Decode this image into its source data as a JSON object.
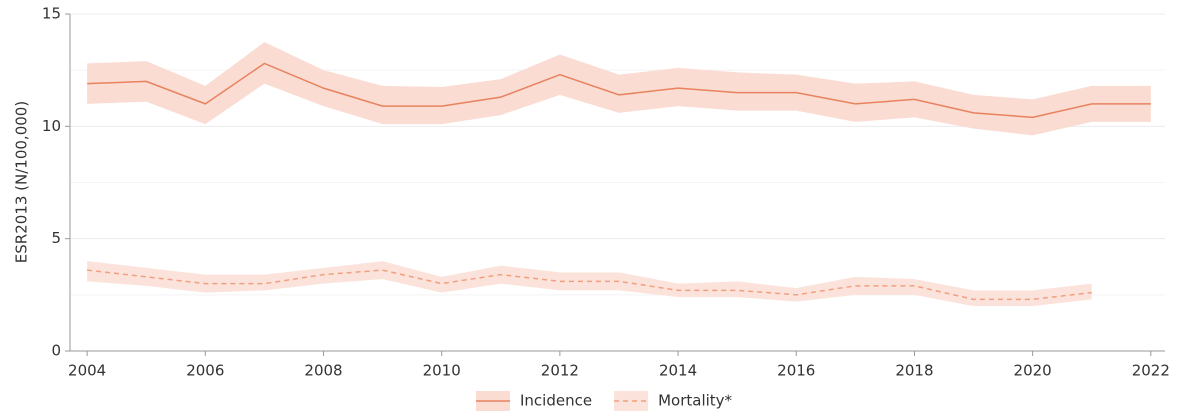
{
  "chart_data": {
    "type": "line",
    "y_label": "ESR2013 (N/100,000)",
    "x": [
      2004,
      2005,
      2006,
      2007,
      2008,
      2009,
      2010,
      2011,
      2012,
      2013,
      2014,
      2015,
      2016,
      2017,
      2018,
      2019,
      2020,
      2021,
      2022
    ],
    "series": [
      {
        "name": "Incidence",
        "color": "#e8825f",
        "band_color": "#fadcd3",
        "dash": false,
        "values": [
          11.9,
          12.0,
          11.0,
          12.8,
          11.7,
          10.9,
          10.9,
          11.3,
          12.3,
          11.4,
          11.7,
          11.5,
          11.5,
          11.0,
          11.2,
          10.6,
          10.4,
          11.0,
          11.0
        ],
        "upper": [
          12.8,
          12.9,
          11.8,
          13.75,
          12.5,
          11.8,
          11.75,
          12.1,
          13.2,
          12.3,
          12.6,
          12.4,
          12.3,
          11.9,
          12.0,
          11.4,
          11.2,
          11.8,
          11.8
        ],
        "lower": [
          11.0,
          11.1,
          10.1,
          11.9,
          10.9,
          10.1,
          10.1,
          10.5,
          11.4,
          10.6,
          10.9,
          10.7,
          10.7,
          10.2,
          10.4,
          9.9,
          9.6,
          10.2,
          10.2
        ]
      },
      {
        "name": "Mortality*",
        "color": "#f0a080",
        "band_color": "#fbe3db",
        "dash": true,
        "values": [
          3.6,
          3.3,
          3.0,
          3.0,
          3.4,
          3.6,
          3.0,
          3.4,
          3.1,
          3.1,
          2.7,
          2.7,
          2.5,
          2.9,
          2.9,
          2.3,
          2.3,
          2.6,
          null
        ],
        "upper": [
          4.0,
          3.7,
          3.4,
          3.4,
          3.7,
          4.0,
          3.3,
          3.8,
          3.5,
          3.5,
          3.0,
          3.1,
          2.8,
          3.3,
          3.2,
          2.7,
          2.7,
          3.0,
          null
        ],
        "lower": [
          3.1,
          2.9,
          2.6,
          2.7,
          3.0,
          3.2,
          2.6,
          3.0,
          2.7,
          2.7,
          2.4,
          2.4,
          2.2,
          2.5,
          2.5,
          2.0,
          2.0,
          2.3,
          null
        ]
      }
    ],
    "xlim": [
      2003.71,
      2022.24
    ],
    "xticks": [
      2004,
      2006,
      2008,
      2010,
      2012,
      2014,
      2016,
      2018,
      2020,
      2022
    ],
    "ylim": [
      0,
      15
    ],
    "yticks": [
      0,
      5,
      10,
      15
    ],
    "minor_yticks": [
      2.5,
      7.5,
      12.5
    ],
    "grid": true,
    "legend": "bottom"
  }
}
